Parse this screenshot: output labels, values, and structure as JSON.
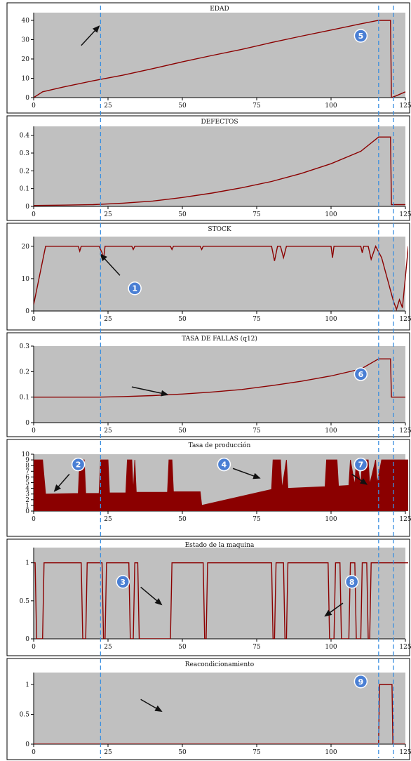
{
  "colors": {
    "plot_bg": "#c0c0c0",
    "series": "#8b0000",
    "vline": "#3a8fe0",
    "arrow": "#111111",
    "marker_fill": "#4a7fd4"
  },
  "vlines_x": [
    22.5,
    116,
    121
  ],
  "chart_data": [
    {
      "type": "line",
      "title": "EDAD",
      "xlim": [
        0,
        125
      ],
      "ylim": [
        0,
        44
      ],
      "xticks": [
        0,
        25,
        50,
        75,
        100,
        125
      ],
      "yticks": [
        0,
        10,
        20,
        30,
        40
      ],
      "series": [
        {
          "x": [
            0,
            3,
            10,
            20,
            30,
            40,
            50,
            60,
            70,
            80,
            90,
            100,
            110,
            116,
            120,
            120.3,
            122,
            125
          ],
          "y": [
            0,
            3,
            5.5,
            8.7,
            11.6,
            15,
            18.5,
            21.8,
            25,
            28.5,
            31.8,
            35,
            38.2,
            40,
            40,
            0,
            1,
            3
          ]
        }
      ],
      "markers": [
        {
          "label": "5",
          "x": 110,
          "y": 32
        }
      ],
      "arrows": [
        {
          "from": [
            16,
            27
          ],
          "to": [
            22,
            37
          ]
        }
      ]
    },
    {
      "type": "line",
      "title": "DEFECTOS",
      "xlim": [
        0,
        125
      ],
      "ylim": [
        0,
        0.45
      ],
      "xticks": [
        0,
        25,
        50,
        75,
        100,
        125
      ],
      "yticks": [
        0,
        0.1,
        0.2,
        0.3,
        0.4
      ],
      "series": [
        {
          "x": [
            0,
            10,
            20,
            30,
            40,
            50,
            60,
            70,
            80,
            90,
            100,
            110,
            116,
            120,
            120.3,
            125
          ],
          "y": [
            0.005,
            0.007,
            0.01,
            0.018,
            0.03,
            0.05,
            0.075,
            0.105,
            0.14,
            0.185,
            0.24,
            0.31,
            0.39,
            0.39,
            0.01,
            0.01
          ]
        }
      ]
    },
    {
      "type": "line",
      "title": "STOCK",
      "xlim": [
        0,
        125
      ],
      "ylim": [
        0,
        23
      ],
      "xticks": [
        0,
        25,
        50,
        75,
        100,
        125
      ],
      "yticks": [
        0,
        10,
        20
      ],
      "series": [
        {
          "x": [
            0,
            4,
            15,
            15.5,
            16,
            22,
            23,
            23.5,
            24,
            33,
            33.5,
            34,
            46,
            46.5,
            47,
            56,
            56.5,
            57,
            80,
            81,
            82,
            83,
            84,
            85,
            86,
            87,
            100,
            100.5,
            101,
            110,
            110.5,
            111,
            112.5,
            113.5,
            115,
            117,
            121,
            122,
            123,
            124,
            126
          ],
          "y": [
            2,
            20,
            20,
            18.5,
            20,
            20,
            18,
            16,
            20,
            20,
            19,
            20,
            20,
            19,
            20,
            20,
            19,
            20,
            20,
            15.5,
            20,
            20,
            16.5,
            20,
            20,
            20,
            20,
            16.5,
            20,
            20,
            18,
            20,
            20,
            16,
            20,
            16.5,
            3,
            0.5,
            3.5,
            1,
            20
          ]
        }
      ],
      "markers": [
        {
          "label": "1",
          "x": 34,
          "y": 7
        }
      ],
      "arrows": [
        {
          "from": [
            29,
            11
          ],
          "to": [
            22.5,
            17.5
          ]
        }
      ]
    },
    {
      "type": "line",
      "title": "TASA DE FALLAS (q12)",
      "xlim": [
        0,
        125
      ],
      "ylim": [
        0,
        0.3
      ],
      "xticks": [
        0,
        25,
        50,
        75,
        100,
        125
      ],
      "yticks": [
        0,
        0.1,
        0.2,
        0.3
      ],
      "series": [
        {
          "x": [
            0,
            10,
            22,
            30,
            40,
            50,
            60,
            70,
            80,
            90,
            100,
            110,
            116,
            120,
            120.3,
            125
          ],
          "y": [
            0.1,
            0.1,
            0.1,
            0.102,
            0.106,
            0.112,
            0.12,
            0.13,
            0.145,
            0.162,
            0.183,
            0.21,
            0.25,
            0.25,
            0.1,
            0.1
          ]
        }
      ],
      "markers": [
        {
          "label": "6",
          "x": 110,
          "y": 0.19
        }
      ],
      "arrows": [
        {
          "from": [
            33,
            0.14
          ],
          "to": [
            45,
            0.11
          ]
        }
      ]
    },
    {
      "type": "area",
      "title": "Tasa de producción",
      "xlim": [
        0,
        125
      ],
      "ylim": [
        0,
        10
      ],
      "xticks": [
        0,
        25,
        50,
        75,
        100,
        125
      ],
      "yticks": [
        0,
        1,
        2,
        3,
        4,
        5,
        6,
        7,
        8,
        9,
        10
      ],
      "series": [
        {
          "x": [
            0,
            3,
            4,
            15,
            15.5,
            17,
            17.5,
            22,
            22.5,
            25,
            25.5,
            31,
            31.5,
            33,
            33.5,
            34,
            34.5,
            45,
            45.5,
            46.5,
            47,
            56,
            56.5,
            80,
            80.5,
            83,
            83.5,
            85,
            85.5,
            98,
            98.5,
            102,
            102.5,
            106,
            106.5,
            108,
            108.5,
            110,
            110.5,
            112.5,
            113,
            115,
            115.5,
            117,
            117.5,
            126
          ],
          "y": [
            9,
            9,
            3,
            3.1,
            9,
            9,
            3.1,
            3.1,
            9,
            9,
            3.2,
            3.2,
            9,
            9,
            3.3,
            9,
            3.3,
            3.3,
            9,
            9,
            3.4,
            3.4,
            1,
            3.8,
            9,
            9,
            3.9,
            9,
            4,
            4.3,
            9,
            9,
            4.4,
            4.5,
            9,
            4.5,
            9,
            4.6,
            9,
            9,
            4.7,
            9,
            4.8,
            9,
            9,
            9
          ]
        }
      ],
      "markers": [
        {
          "label": "2",
          "x": 15,
          "y": 8.2
        },
        {
          "label": "4",
          "x": 64,
          "y": 8.2
        },
        {
          "label": "7",
          "x": 110,
          "y": 8.2
        }
      ],
      "arrows": [
        {
          "from": [
            12,
            6.5
          ],
          "to": [
            7,
            3.5
          ]
        },
        {
          "from": [
            67,
            7.5
          ],
          "to": [
            76,
            5.8
          ]
        },
        {
          "from": [
            107,
            6.5
          ],
          "to": [
            112,
            4.7
          ]
        }
      ]
    },
    {
      "type": "line",
      "title": "Estado de la maquina",
      "xlim": [
        0,
        125
      ],
      "ylim": [
        0,
        1.2
      ],
      "xticks": [
        0,
        25,
        50,
        75,
        100,
        125
      ],
      "yticks": [
        0,
        0.5,
        1
      ],
      "series": [
        {
          "x": [
            0,
            0.5,
            1,
            3,
            3.5,
            16,
            16.5,
            17.5,
            18,
            23,
            23.5,
            24,
            24.5,
            32,
            32.5,
            33.5,
            34,
            35,
            35.5,
            46,
            46.5,
            47,
            47.5,
            57,
            57.5,
            58,
            58.5,
            80,
            80.5,
            81,
            81.5,
            84,
            84.5,
            85,
            85.5,
            99,
            99.5,
            101,
            101.5,
            103,
            103.5,
            106,
            106.5,
            108,
            108.5,
            110,
            110.5,
            112,
            112.5,
            113,
            113.5,
            126
          ],
          "y": [
            1,
            1,
            0,
            0,
            1,
            1,
            0,
            0,
            1,
            1,
            0,
            0,
            1,
            1,
            0,
            0,
            1,
            1,
            0,
            0,
            1,
            1,
            1,
            1,
            0,
            0,
            1,
            1,
            0,
            0,
            1,
            1,
            0,
            0,
            1,
            1,
            0,
            0,
            1,
            1,
            0,
            0,
            1,
            1,
            0,
            0,
            1,
            1,
            0,
            0,
            1,
            1
          ]
        }
      ],
      "markers": [
        {
          "label": "3",
          "x": 30,
          "y": 0.75
        },
        {
          "label": "8",
          "x": 107,
          "y": 0.75
        }
      ],
      "arrows": [
        {
          "from": [
            36,
            0.68
          ],
          "to": [
            43,
            0.45
          ]
        },
        {
          "from": [
            104,
            0.47
          ],
          "to": [
            98,
            0.3
          ]
        }
      ]
    },
    {
      "type": "line",
      "title": "Reacondicionamiento",
      "xlim": [
        0,
        125
      ],
      "ylim": [
        0,
        1.2
      ],
      "xticks": [
        0,
        25,
        50,
        75,
        100,
        125
      ],
      "yticks": [
        0,
        0.5,
        1
      ],
      "series": [
        {
          "x": [
            0,
            116,
            116.3,
            120.5,
            120.8,
            125
          ],
          "y": [
            0,
            0,
            1,
            1,
            0,
            0
          ]
        }
      ],
      "markers": [
        {
          "label": "9",
          "x": 110,
          "y": 1.05
        }
      ],
      "arrows": [
        {
          "from": [
            36,
            0.75
          ],
          "to": [
            43,
            0.55
          ]
        }
      ]
    }
  ]
}
